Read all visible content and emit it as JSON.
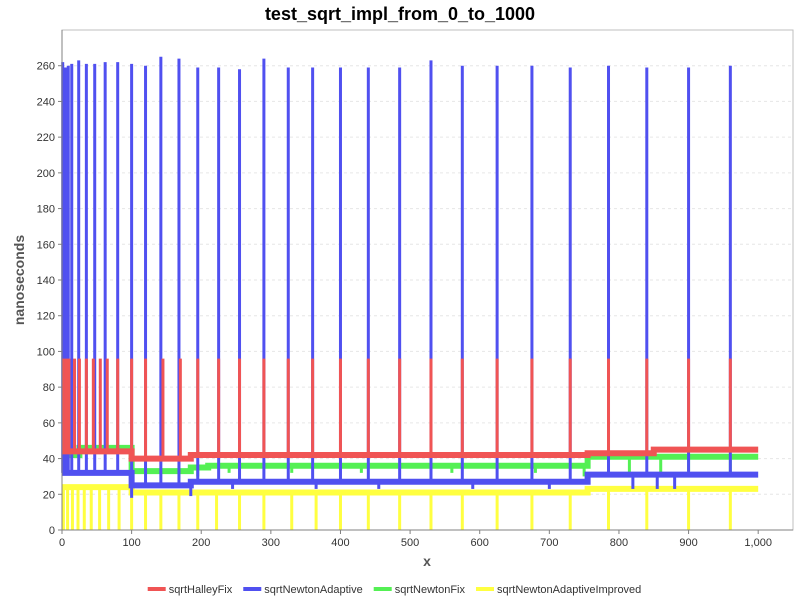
{
  "chart_data": {
    "type": "line",
    "title": "test_sqrt_impl_from_0_to_1000",
    "xlabel": "x",
    "ylabel": "nanoseconds",
    "xlim": [
      0,
      1050
    ],
    "ylim": [
      0,
      280
    ],
    "x_ticks": [
      0,
      100,
      200,
      300,
      400,
      500,
      600,
      700,
      800,
      900,
      1000
    ],
    "x_tick_labels": [
      "0",
      "100",
      "200",
      "300",
      "400",
      "500",
      "600",
      "700",
      "800",
      "900",
      "1,000"
    ],
    "y_ticks": [
      0,
      20,
      40,
      60,
      80,
      100,
      120,
      140,
      160,
      180,
      200,
      220,
      240,
      260
    ],
    "y_tick_labels": [
      "0",
      "20",
      "40",
      "60",
      "80",
      "100",
      "120",
      "140",
      "160",
      "180",
      "200",
      "220",
      "240",
      "260"
    ],
    "grid": true,
    "legend_position": "bottom",
    "series": [
      {
        "name": "sqrtHalleyFix",
        "color": "#f05454",
        "baseline_segments": [
          [
            0,
            100,
            44
          ],
          [
            100,
            185,
            40
          ],
          [
            185,
            755,
            42
          ],
          [
            755,
            850,
            43
          ],
          [
            850,
            1000,
            45
          ]
        ],
        "spikes": [
          [
            2,
            96
          ],
          [
            6,
            96
          ],
          [
            10,
            96
          ],
          [
            18,
            96
          ],
          [
            25,
            96
          ],
          [
            35,
            96
          ],
          [
            45,
            96
          ],
          [
            55,
            96
          ],
          [
            65,
            96
          ],
          [
            80,
            96
          ],
          [
            100,
            96
          ],
          [
            120,
            96
          ],
          [
            145,
            96
          ],
          [
            170,
            96
          ],
          [
            195,
            96
          ],
          [
            225,
            96
          ],
          [
            255,
            96
          ],
          [
            290,
            96
          ],
          [
            325,
            96
          ],
          [
            360,
            96
          ],
          [
            400,
            96
          ],
          [
            440,
            96
          ],
          [
            485,
            96
          ],
          [
            530,
            96
          ],
          [
            575,
            96
          ],
          [
            625,
            96
          ],
          [
            675,
            96
          ],
          [
            730,
            96
          ],
          [
            785,
            96
          ],
          [
            840,
            96
          ],
          [
            900,
            96
          ],
          [
            960,
            96
          ]
        ]
      },
      {
        "name": "sqrtNewtonAdaptive",
        "color": "#5050f0",
        "baseline_segments": [
          [
            0,
            100,
            32
          ],
          [
            100,
            185,
            25
          ],
          [
            185,
            755,
            27
          ],
          [
            755,
            1000,
            31
          ]
        ],
        "spikes": [
          [
            1,
            262
          ],
          [
            5,
            259
          ],
          [
            9,
            260
          ],
          [
            14,
            261
          ],
          [
            24,
            263
          ],
          [
            35,
            261
          ],
          [
            47,
            261
          ],
          [
            62,
            262
          ],
          [
            80,
            262
          ],
          [
            100,
            261
          ],
          [
            120,
            260
          ],
          [
            142,
            265
          ],
          [
            168,
            264
          ],
          [
            195,
            259
          ],
          [
            225,
            259
          ],
          [
            255,
            258
          ],
          [
            290,
            264
          ],
          [
            325,
            259
          ],
          [
            360,
            259
          ],
          [
            400,
            259
          ],
          [
            440,
            259
          ],
          [
            485,
            259
          ],
          [
            530,
            263
          ],
          [
            575,
            260
          ],
          [
            625,
            260
          ],
          [
            675,
            260
          ],
          [
            730,
            259
          ],
          [
            785,
            260
          ],
          [
            840,
            259
          ],
          [
            900,
            259
          ],
          [
            960,
            260
          ]
        ],
        "dips": [
          [
            100,
            18
          ],
          [
            185,
            19
          ],
          [
            245,
            23
          ],
          [
            365,
            23
          ],
          [
            455,
            23
          ],
          [
            590,
            23
          ],
          [
            700,
            23
          ],
          [
            820,
            23
          ],
          [
            855,
            23
          ],
          [
            880,
            23
          ]
        ]
      },
      {
        "name": "sqrtNewtonFix",
        "color": "#54f054",
        "baseline_segments": [
          [
            0,
            25,
            42
          ],
          [
            25,
            100,
            46
          ],
          [
            100,
            185,
            33
          ],
          [
            185,
            210,
            35
          ],
          [
            210,
            755,
            36
          ],
          [
            755,
            1000,
            41
          ]
        ],
        "spikes": [],
        "dips": [
          [
            195,
            30
          ],
          [
            240,
            32
          ],
          [
            330,
            32
          ],
          [
            430,
            32
          ],
          [
            560,
            32
          ],
          [
            680,
            32
          ],
          [
            750,
            30
          ],
          [
            815,
            32
          ],
          [
            860,
            32
          ],
          [
            900,
            33
          ],
          [
            960,
            32
          ]
        ]
      },
      {
        "name": "sqrtNewtonAdaptiveImproved",
        "color": "#ffff40",
        "baseline_segments": [
          [
            0,
            100,
            24
          ],
          [
            100,
            185,
            21
          ],
          [
            185,
            755,
            21
          ],
          [
            755,
            1000,
            23
          ]
        ],
        "spikes": [],
        "dips": [
          [
            2,
            0
          ],
          [
            8,
            0
          ],
          [
            15,
            0
          ],
          [
            23,
            0
          ],
          [
            32,
            0
          ],
          [
            42,
            0
          ],
          [
            54,
            0
          ],
          [
            67,
            0
          ],
          [
            82,
            0
          ],
          [
            100,
            0
          ],
          [
            120,
            0
          ],
          [
            142,
            0
          ],
          [
            168,
            0
          ],
          [
            195,
            0
          ],
          [
            222,
            0
          ],
          [
            255,
            0
          ],
          [
            290,
            0
          ],
          [
            330,
            0
          ],
          [
            365,
            0
          ],
          [
            400,
            0
          ],
          [
            440,
            0
          ],
          [
            485,
            0
          ],
          [
            530,
            0
          ],
          [
            575,
            0
          ],
          [
            625,
            0
          ],
          [
            675,
            0
          ],
          [
            730,
            0
          ],
          [
            785,
            0
          ],
          [
            840,
            0
          ],
          [
            900,
            0
          ],
          [
            960,
            0
          ]
        ]
      }
    ]
  }
}
